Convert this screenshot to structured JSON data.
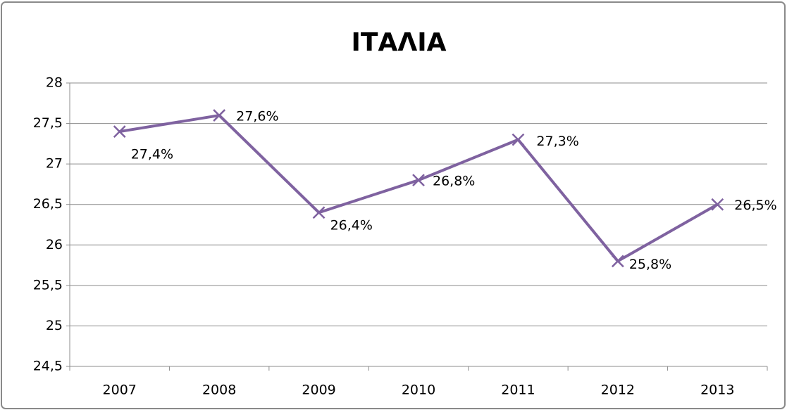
{
  "chart_data": {
    "type": "line",
    "title": "ΙΤΑΛΙΑ",
    "categories": [
      "2007",
      "2008",
      "2009",
      "2010",
      "2011",
      "2012",
      "2013"
    ],
    "series": [
      {
        "color": "#7f62a0",
        "values": [
          27.4,
          27.6,
          26.4,
          26.8,
          27.3,
          25.8,
          26.5
        ],
        "value_labels": [
          "27,4%",
          "27,6%",
          "26,4%",
          "26,8%",
          "27,3%",
          "25,8%",
          "26,5%"
        ]
      }
    ],
    "ylim": [
      24.5,
      28
    ],
    "yticks": [
      {
        "value": 24.5,
        "label": "24,5"
      },
      25,
      {
        "value": 25.5,
        "label": "25,5"
      },
      26,
      {
        "value": 26.5,
        "label": "26,5"
      },
      27,
      {
        "value": 27.5,
        "label": "27,5"
      },
      28
    ],
    "grid": true
  }
}
